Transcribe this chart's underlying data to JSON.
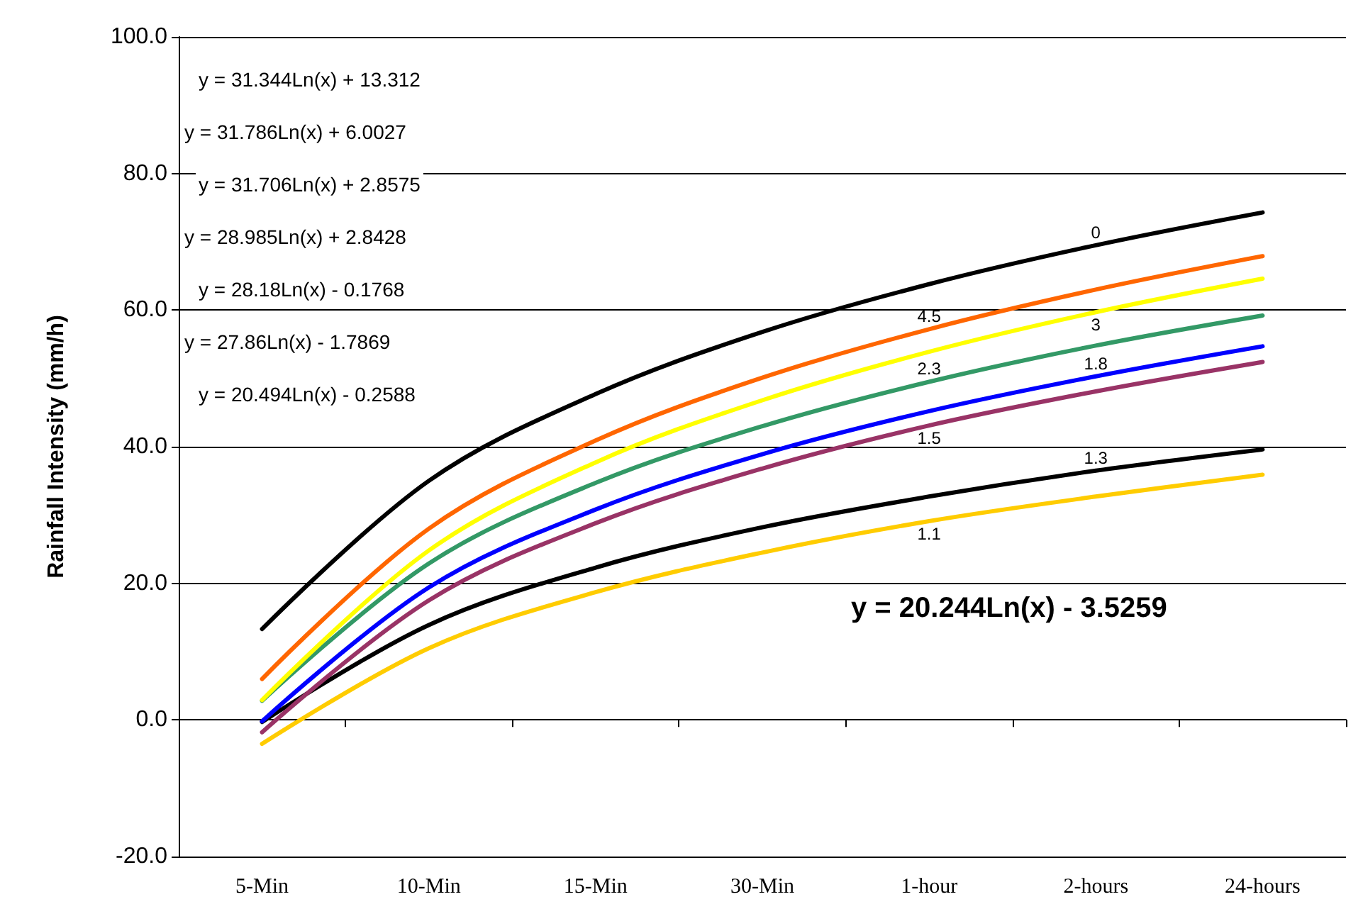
{
  "chart_data": {
    "type": "line",
    "ylabel": "Rainfall Intensity (mm/h)",
    "categories": [
      "5-Min",
      "10-Min",
      "15-Min",
      "30-Min",
      "1-hour",
      "2-hours",
      "24-hours"
    ],
    "series": [
      {
        "name": "0",
        "color": "#000000",
        "values": [
          13.3,
          35.0,
          47.7,
          56.8,
          63.8,
          69.5,
          74.3
        ]
      },
      {
        "name": "4.5",
        "color": "#ff6600",
        "values": [
          6.0,
          28.0,
          40.9,
          50.1,
          57.2,
          63.0,
          67.9
        ]
      },
      {
        "name": "3",
        "color": "#ffff00",
        "values": [
          2.9,
          24.8,
          37.7,
          46.8,
          53.9,
          59.7,
          64.6
        ]
      },
      {
        "name": "2.3",
        "color": "#339966",
        "values": [
          2.8,
          22.9,
          34.7,
          43.0,
          49.5,
          54.8,
          59.2
        ]
      },
      {
        "name": "1.8",
        "color": "#0000ff",
        "values": [
          -0.2,
          19.4,
          30.8,
          38.9,
          45.2,
          50.3,
          54.7
        ]
      },
      {
        "name": "1.5",
        "color": "#993366",
        "values": [
          -1.8,
          17.5,
          28.8,
          36.8,
          43.1,
          48.1,
          52.4
        ]
      },
      {
        "name": "1.3",
        "color": "#000000",
        "values": [
          -0.3,
          13.9,
          22.3,
          28.2,
          32.7,
          36.5,
          39.6
        ]
      },
      {
        "name": "1.1",
        "color": "#ffcc00",
        "values": [
          -3.5,
          10.5,
          18.7,
          24.5,
          29.1,
          32.7,
          35.9
        ]
      }
    ],
    "ylim": [
      -20,
      100
    ],
    "yticks": [
      {
        "value": -20,
        "label": "-20.0"
      },
      {
        "value": 0,
        "label": "0.0"
      },
      {
        "value": 20,
        "label": "20.0"
      },
      {
        "value": 40,
        "label": "40.0"
      },
      {
        "value": 60,
        "label": "60.0"
      },
      {
        "value": 80,
        "label": "80.0"
      },
      {
        "value": 100,
        "label": "100.0"
      }
    ],
    "grid": "y",
    "marker": "none",
    "line_style": "solid",
    "annotations": [
      "y = 31.344Ln(x) + 13.312",
      "y = 31.786Ln(x) + 6.0027",
      "y = 31.706Ln(x) + 2.8575",
      "y = 28.985Ln(x) + 2.8428",
      "y = 28.18Ln(x) - 0.1768",
      "y = 27.86Ln(x) - 1.7869",
      "y = 20.494Ln(x) - 0.2588",
      "y = 20.244Ln(x) - 3.5259"
    ]
  }
}
